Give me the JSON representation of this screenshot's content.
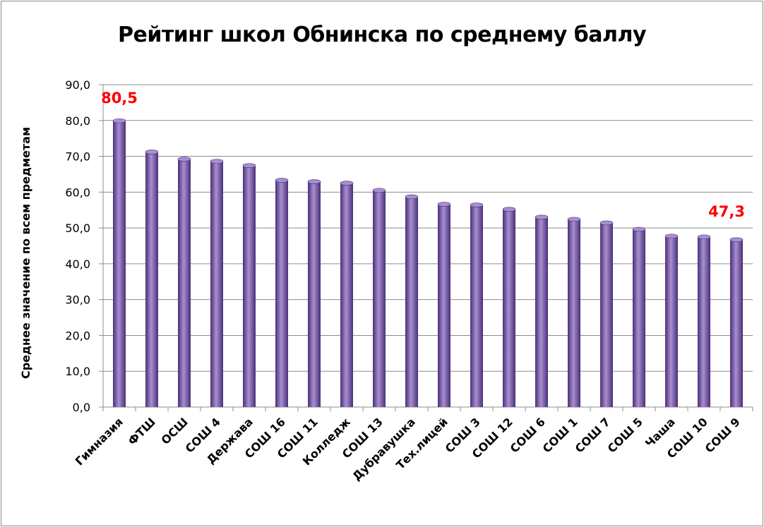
{
  "chart_data": {
    "type": "bar",
    "title": "Рейтинг школ Обнинска по среднему баллу",
    "xlabel": "",
    "ylabel": "Среднее значение по всем предметам",
    "ylim": [
      0,
      90
    ],
    "yticks": [
      "0,0",
      "10,0",
      "20,0",
      "30,0",
      "40,0",
      "50,0",
      "60,0",
      "70,0",
      "80,0",
      "90,0"
    ],
    "grid": true,
    "categories": [
      "Гимназия",
      "ФТШ",
      "ОСШ",
      "СОШ 4",
      "Держава",
      "СОШ 16",
      "СОШ 11",
      "Колледж",
      "СОШ 13",
      "Дубравушка",
      "Тех.лицей",
      "СОШ 3",
      "СОШ 12",
      "СОШ 6",
      "СОШ 1",
      "СОШ 7",
      "СОШ 5",
      "Чаша",
      "СОШ 10",
      "СОШ 9"
    ],
    "values": [
      80.5,
      71.8,
      69.8,
      69.2,
      68.0,
      63.9,
      63.5,
      63.1,
      61.1,
      59.3,
      57.2,
      57.0,
      55.8,
      53.6,
      53.0,
      52.0,
      50.2,
      48.3,
      48.1,
      47.3
    ],
    "data_labels": [
      {
        "category": "Гимназия",
        "text": "80,5"
      },
      {
        "category": "СОШ 9",
        "text": "47,3"
      }
    ],
    "colors": {
      "bar": "#7a5ba8",
      "bar_dark": "#4a2f78",
      "bar_light": "#a88fd0",
      "grid": "#8c8c8c",
      "data_label": "#ff0000"
    }
  }
}
